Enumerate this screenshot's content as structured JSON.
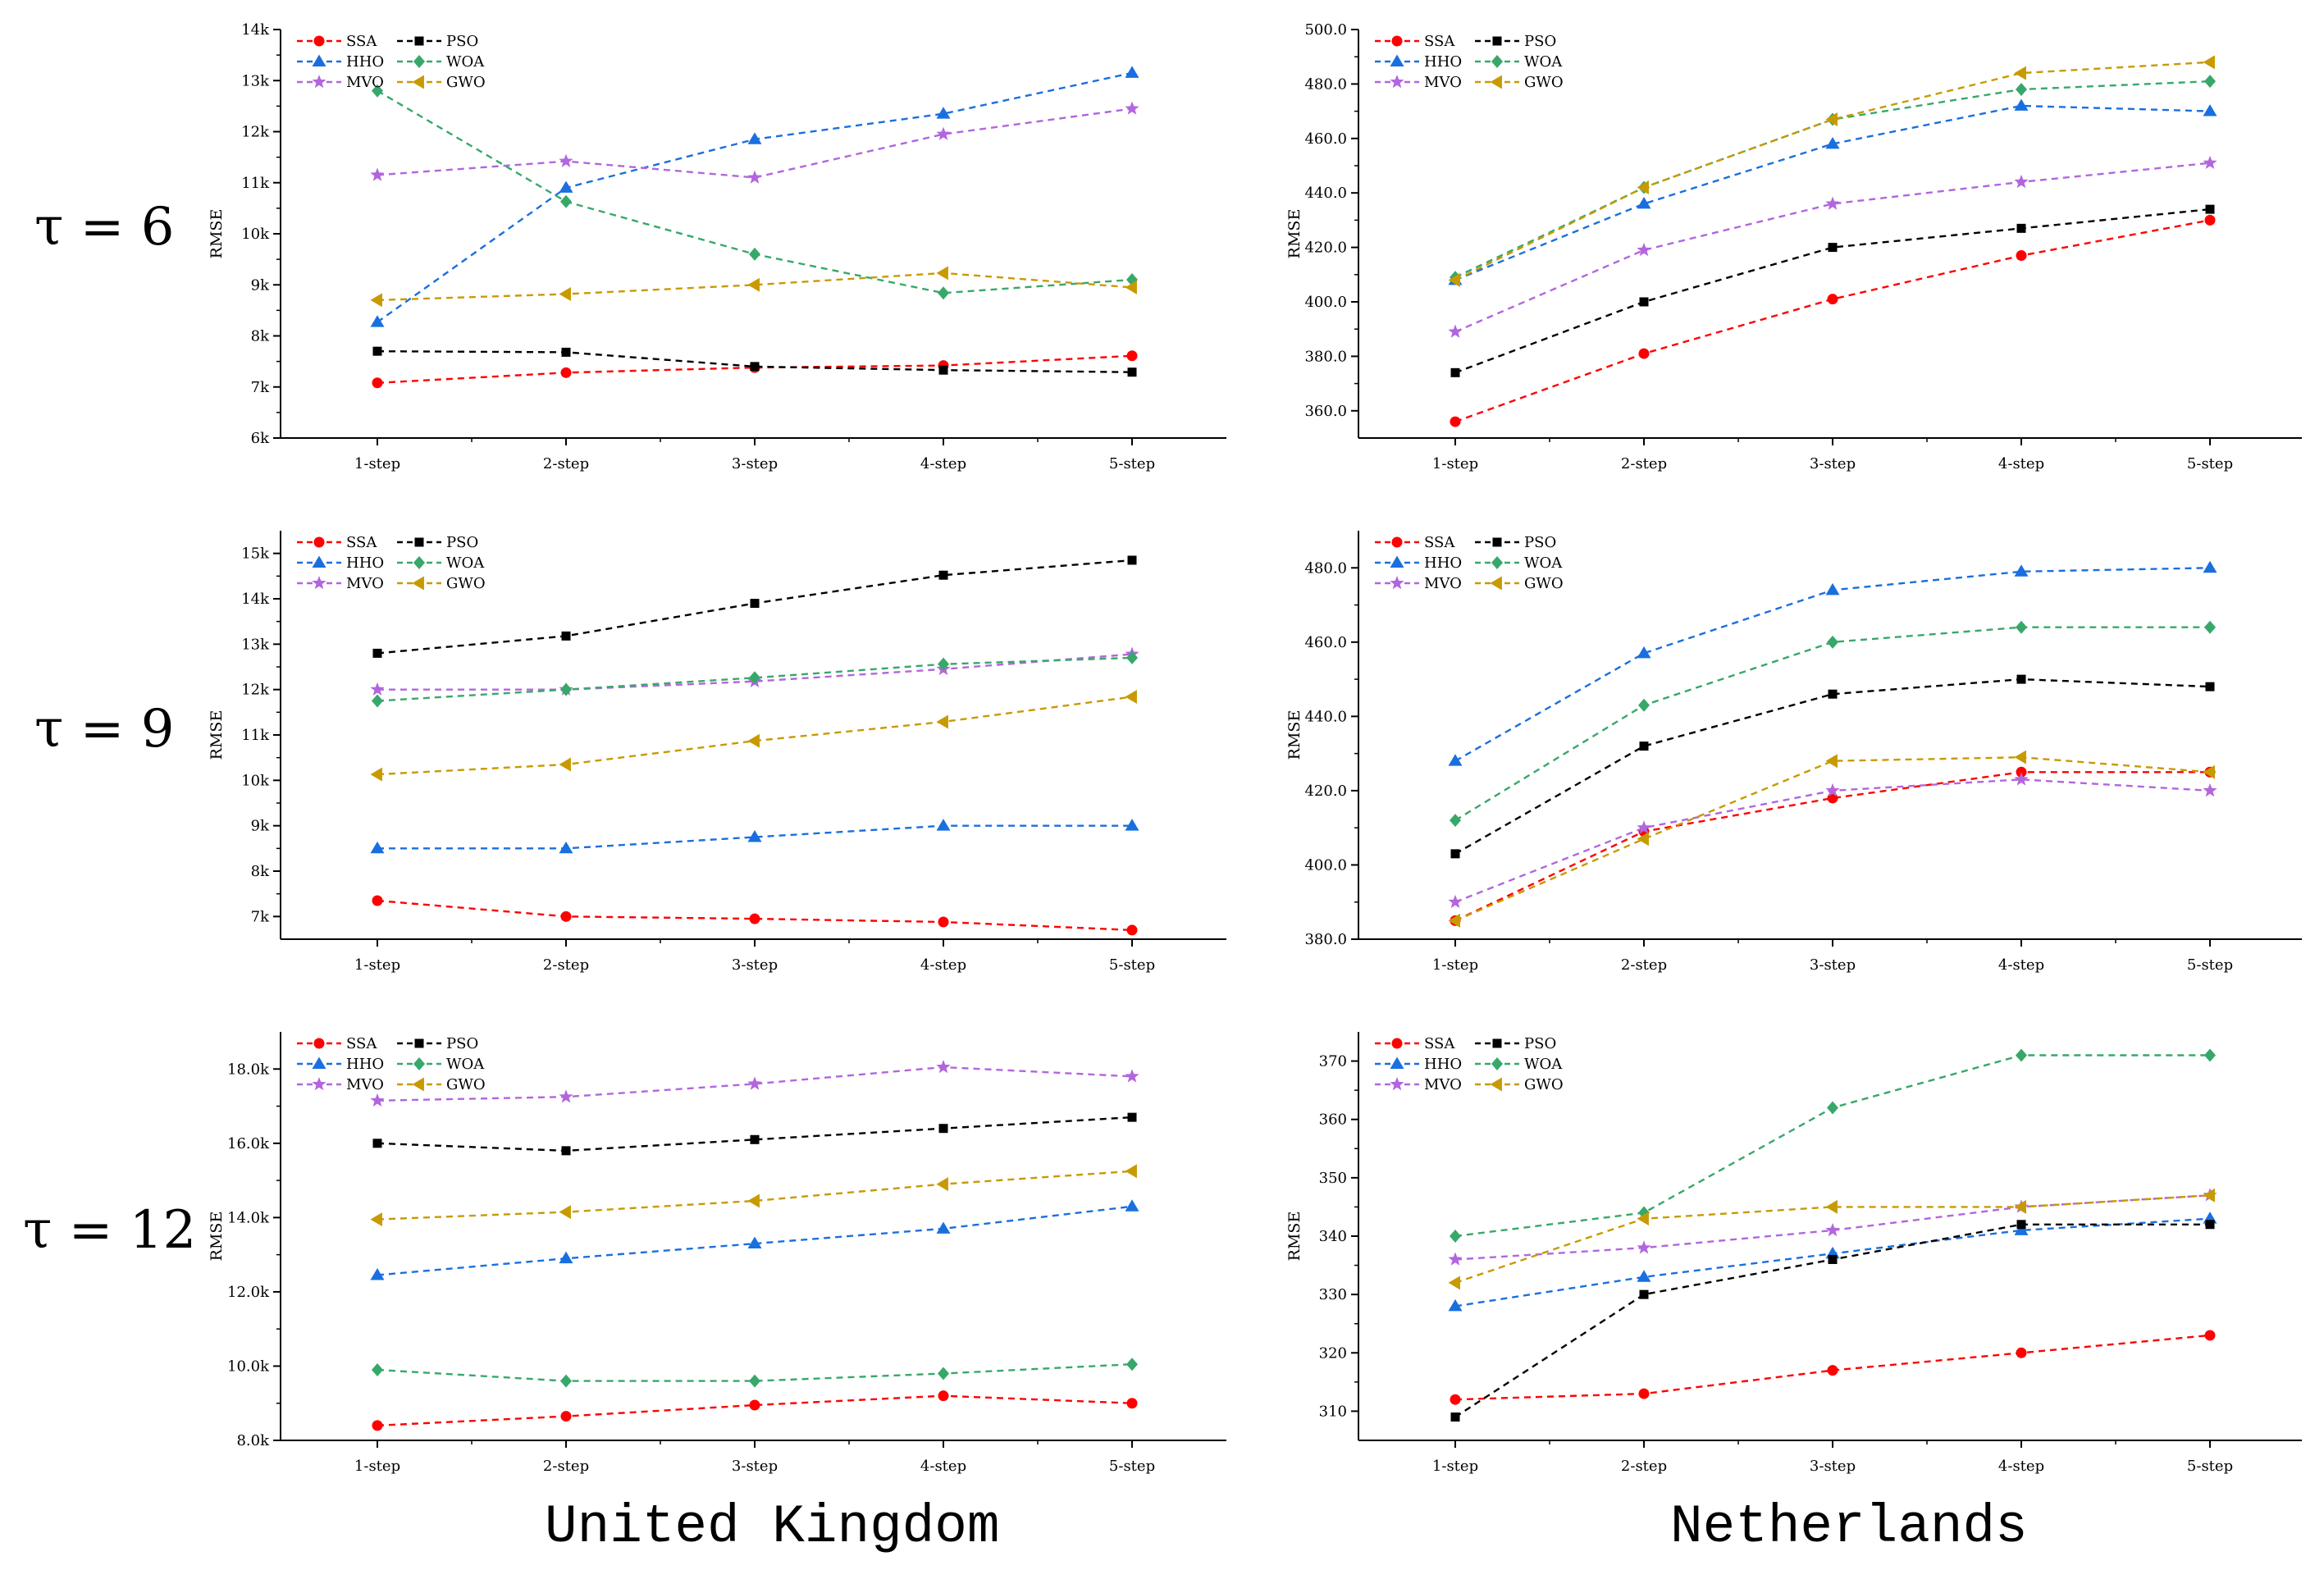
{
  "row_labels": [
    "τ = 6",
    "τ = 9",
    "τ = 12"
  ],
  "column_labels": [
    "United Kingdom",
    "Netherlands"
  ],
  "series_styles": [
    {
      "name": "SSA",
      "color": "#ff0000",
      "marker": "circle"
    },
    {
      "name": "HHO",
      "color": "#1a6fdf",
      "marker": "triangle"
    },
    {
      "name": "MVO",
      "color": "#b266dd",
      "marker": "star"
    },
    {
      "name": "PSO",
      "color": "#000000",
      "marker": "square"
    },
    {
      "name": "WOA",
      "color": "#37a86a",
      "marker": "diamond"
    },
    {
      "name": "GWO",
      "color": "#c89a00",
      "marker": "left-triangle"
    }
  ],
  "chart_data": [
    {
      "type": "line",
      "row": "τ = 6",
      "column": "United Kingdom",
      "categories": [
        "1-step",
        "2-step",
        "3-step",
        "4-step",
        "5-step"
      ],
      "ylabel": "RMSE",
      "ylim": [
        6000,
        14000
      ],
      "yticks": [
        6000,
        7000,
        8000,
        9000,
        10000,
        11000,
        12000,
        13000,
        14000
      ],
      "ytick_labels": [
        "6k",
        "7k",
        "8k",
        "9k",
        "10k",
        "11k",
        "12k",
        "13k",
        "14k"
      ],
      "legend": "top-left",
      "series": [
        {
          "name": "SSA",
          "values": [
            7080,
            7280,
            7380,
            7420,
            7610
          ]
        },
        {
          "name": "HHO",
          "values": [
            8270,
            10900,
            11850,
            12350,
            13150
          ]
        },
        {
          "name": "MVO",
          "values": [
            11150,
            11420,
            11100,
            11950,
            12450
          ]
        },
        {
          "name": "PSO",
          "values": [
            7700,
            7680,
            7400,
            7330,
            7290
          ]
        },
        {
          "name": "WOA",
          "values": [
            12800,
            10630,
            9600,
            8840,
            9100
          ]
        },
        {
          "name": "GWO",
          "values": [
            8700,
            8820,
            9000,
            9230,
            8950
          ]
        }
      ]
    },
    {
      "type": "line",
      "row": "τ = 6",
      "column": "Netherlands",
      "categories": [
        "1-step",
        "2-step",
        "3-step",
        "4-step",
        "5-step"
      ],
      "ylabel": "RMSE",
      "ylim": [
        350,
        500
      ],
      "yticks": [
        360,
        380,
        400,
        420,
        440,
        460,
        480,
        500
      ],
      "ytick_labels": [
        "360.0",
        "380.0",
        "400.0",
        "420.0",
        "440.0",
        "460.0",
        "480.0",
        "500.0"
      ],
      "legend": "top-left",
      "series": [
        {
          "name": "SSA",
          "values": [
            356,
            381,
            401,
            417,
            430
          ]
        },
        {
          "name": "HHO",
          "values": [
            408,
            436,
            458,
            472,
            470
          ]
        },
        {
          "name": "MVO",
          "values": [
            389,
            419,
            436,
            444,
            451
          ]
        },
        {
          "name": "PSO",
          "values": [
            374,
            400,
            420,
            427,
            434
          ]
        },
        {
          "name": "WOA",
          "values": [
            409,
            442,
            467,
            478,
            481
          ]
        },
        {
          "name": "GWO",
          "values": [
            408,
            442,
            467,
            484,
            488
          ]
        }
      ]
    },
    {
      "type": "line",
      "row": "τ = 9",
      "column": "United Kingdom",
      "categories": [
        "1-step",
        "2-step",
        "3-step",
        "4-step",
        "5-step"
      ],
      "ylabel": "RMSE",
      "ylim": [
        6500,
        15500
      ],
      "yticks": [
        7000,
        8000,
        9000,
        10000,
        11000,
        12000,
        13000,
        14000,
        15000
      ],
      "ytick_labels": [
        "7k",
        "8k",
        "9k",
        "10k",
        "11k",
        "12k",
        "13k",
        "14k",
        "15k"
      ],
      "legend": "top-left",
      "series": [
        {
          "name": "SSA",
          "values": [
            7350,
            7000,
            6950,
            6880,
            6700
          ]
        },
        {
          "name": "HHO",
          "values": [
            8500,
            8500,
            8750,
            9000,
            9000
          ]
        },
        {
          "name": "MVO",
          "values": [
            12000,
            12000,
            12180,
            12450,
            12780
          ]
        },
        {
          "name": "PSO",
          "values": [
            12800,
            13180,
            13900,
            14520,
            14850
          ]
        },
        {
          "name": "WOA",
          "values": [
            11750,
            12000,
            12260,
            12560,
            12700
          ]
        },
        {
          "name": "GWO",
          "values": [
            10130,
            10350,
            10870,
            11290,
            11840
          ]
        }
      ]
    },
    {
      "type": "line",
      "row": "τ = 9",
      "column": "Netherlands",
      "categories": [
        "1-step",
        "2-step",
        "3-step",
        "4-step",
        "5-step"
      ],
      "ylabel": "RMSE",
      "ylim": [
        380,
        490
      ],
      "yticks": [
        380,
        400,
        420,
        440,
        460,
        480
      ],
      "ytick_labels": [
        "380.0",
        "400.0",
        "420.0",
        "440.0",
        "460.0",
        "480.0"
      ],
      "legend": "top-left",
      "series": [
        {
          "name": "SSA",
          "values": [
            385,
            409,
            418,
            425,
            425
          ]
        },
        {
          "name": "HHO",
          "values": [
            428,
            457,
            474,
            479,
            480
          ]
        },
        {
          "name": "MVO",
          "values": [
            390,
            410,
            420,
            423,
            420
          ]
        },
        {
          "name": "PSO",
          "values": [
            403,
            432,
            446,
            450,
            448
          ]
        },
        {
          "name": "WOA",
          "values": [
            412,
            443,
            460,
            464,
            464
          ]
        },
        {
          "name": "GWO",
          "values": [
            385,
            407,
            428,
            429,
            425
          ]
        }
      ]
    },
    {
      "type": "line",
      "row": "τ = 12",
      "column": "United Kingdom",
      "categories": [
        "1-step",
        "2-step",
        "3-step",
        "4-step",
        "5-step"
      ],
      "ylabel": "RMSE",
      "ylim": [
        8000,
        19000
      ],
      "yticks": [
        8000,
        10000,
        12000,
        14000,
        16000,
        18000
      ],
      "ytick_labels": [
        "8.0k",
        "10.0k",
        "12.0k",
        "14.0k",
        "16.0k",
        "18.0k"
      ],
      "legend": "top-left",
      "series": [
        {
          "name": "SSA",
          "values": [
            8400,
            8650,
            8950,
            9200,
            9000
          ]
        },
        {
          "name": "HHO",
          "values": [
            12450,
            12900,
            13300,
            13700,
            14300
          ]
        },
        {
          "name": "MVO",
          "values": [
            17150,
            17250,
            17600,
            18050,
            17800
          ]
        },
        {
          "name": "PSO",
          "values": [
            16000,
            15800,
            16100,
            16400,
            16700
          ]
        },
        {
          "name": "WOA",
          "values": [
            9900,
            9600,
            9600,
            9800,
            10050
          ]
        },
        {
          "name": "GWO",
          "values": [
            13950,
            14150,
            14450,
            14900,
            15250
          ]
        }
      ]
    },
    {
      "type": "line",
      "row": "τ = 12",
      "column": "Netherlands",
      "categories": [
        "1-step",
        "2-step",
        "3-step",
        "4-step",
        "5-step"
      ],
      "ylabel": "RMSE",
      "ylim": [
        305,
        375
      ],
      "yticks": [
        310,
        320,
        330,
        340,
        350,
        360,
        370
      ],
      "ytick_labels": [
        "310",
        "320",
        "330",
        "340",
        "350",
        "360",
        "370"
      ],
      "legend": "top-left",
      "series": [
        {
          "name": "SSA",
          "values": [
            312,
            313,
            317,
            320,
            323
          ]
        },
        {
          "name": "HHO",
          "values": [
            328,
            333,
            337,
            341,
            343
          ]
        },
        {
          "name": "MVO",
          "values": [
            336,
            338,
            341,
            345,
            347
          ]
        },
        {
          "name": "PSO",
          "values": [
            309,
            330,
            336,
            342,
            342
          ]
        },
        {
          "name": "WOA",
          "values": [
            340,
            344,
            362,
            371,
            371
          ]
        },
        {
          "name": "GWO",
          "values": [
            332,
            343,
            345,
            345,
            347
          ]
        }
      ]
    }
  ]
}
